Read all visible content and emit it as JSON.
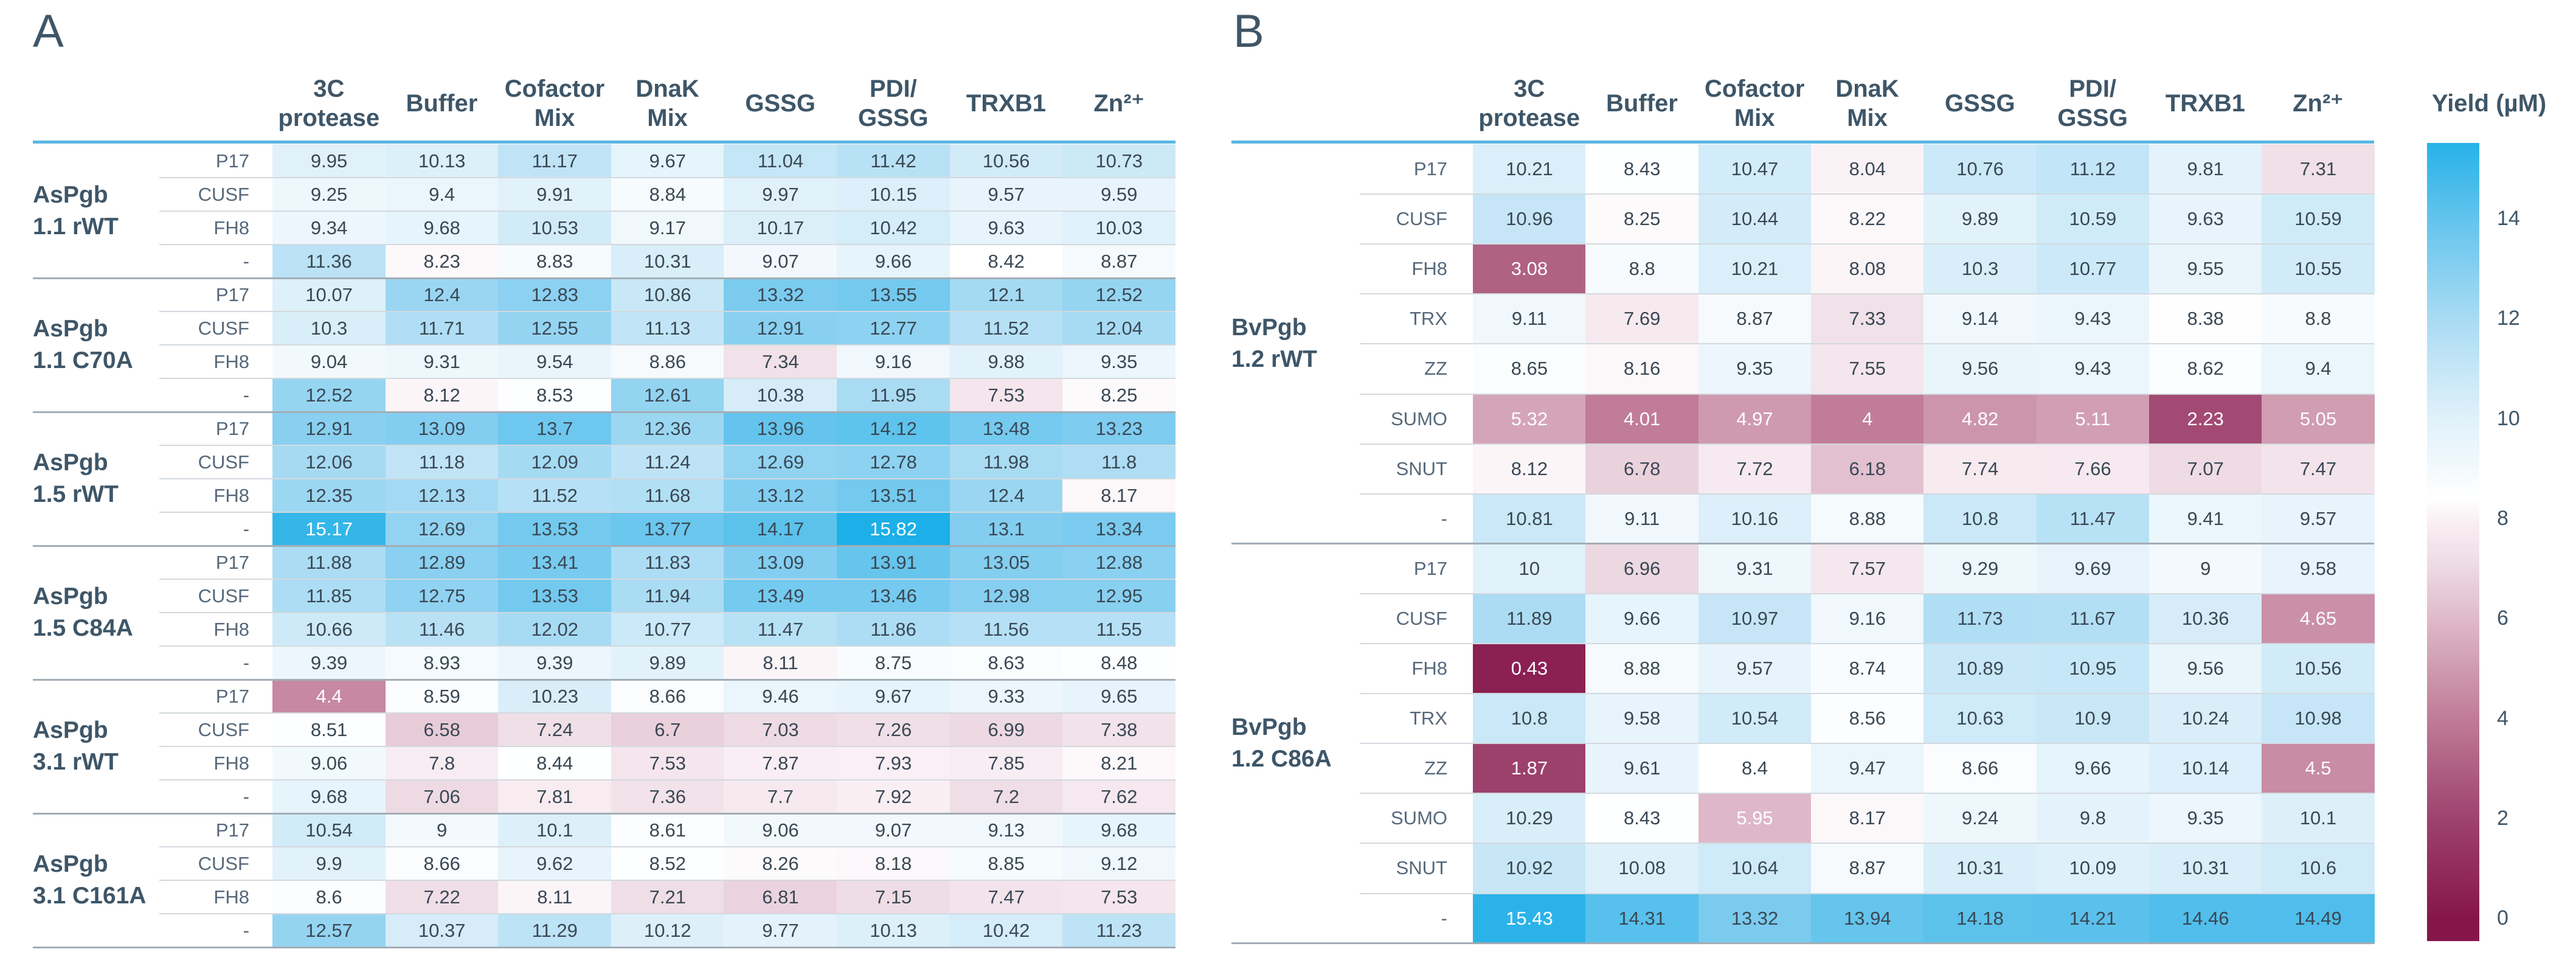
{
  "chart_data": [
    {
      "type": "heatmap",
      "panel": "A",
      "columns": [
        [
          "3C",
          "protease"
        ],
        [
          "Buffer"
        ],
        [
          "Cofactor",
          "Mix"
        ],
        [
          "DnaK",
          "Mix"
        ],
        [
          "GSSG"
        ],
        [
          "PDI/",
          "GSSG"
        ],
        [
          "TRXB1"
        ],
        [
          "Zn²⁺"
        ]
      ],
      "groups": [
        {
          "label": [
            "AsPgb",
            "1.1 rWT"
          ],
          "rows": [
            {
              "tag": "P17",
              "values": [
                9.95,
                10.13,
                11.17,
                9.67,
                11.04,
                11.42,
                10.56,
                10.73
              ]
            },
            {
              "tag": "CUSF",
              "values": [
                9.25,
                9.4,
                9.91,
                8.84,
                9.97,
                10.15,
                9.57,
                9.59
              ]
            },
            {
              "tag": "FH8",
              "values": [
                9.34,
                9.68,
                10.53,
                9.17,
                10.17,
                10.42,
                9.63,
                10.03
              ]
            },
            {
              "tag": "-",
              "values": [
                11.36,
                8.23,
                8.83,
                10.31,
                9.07,
                9.66,
                8.42,
                8.87
              ]
            }
          ]
        },
        {
          "label": [
            "AsPgb",
            "1.1 C70A"
          ],
          "rows": [
            {
              "tag": "P17",
              "values": [
                10.07,
                12.4,
                12.83,
                10.86,
                13.32,
                13.55,
                12.1,
                12.52
              ]
            },
            {
              "tag": "CUSF",
              "values": [
                10.3,
                11.71,
                12.55,
                11.13,
                12.91,
                12.77,
                11.52,
                12.04
              ]
            },
            {
              "tag": "FH8",
              "values": [
                9.04,
                9.31,
                9.54,
                8.86,
                7.34,
                9.16,
                9.88,
                9.35
              ]
            },
            {
              "tag": "-",
              "values": [
                12.52,
                8.12,
                8.53,
                12.61,
                10.38,
                11.95,
                7.53,
                8.25
              ]
            }
          ]
        },
        {
          "label": [
            "AsPgb",
            "1.5 rWT"
          ],
          "rows": [
            {
              "tag": "P17",
              "values": [
                12.91,
                13.09,
                13.7,
                12.36,
                13.96,
                14.12,
                13.48,
                13.23
              ]
            },
            {
              "tag": "CUSF",
              "values": [
                12.06,
                11.18,
                12.09,
                11.24,
                12.69,
                12.78,
                11.98,
                11.8
              ]
            },
            {
              "tag": "FH8",
              "values": [
                12.35,
                12.13,
                11.52,
                11.68,
                13.12,
                13.51,
                12.4,
                8.17
              ]
            },
            {
              "tag": "-",
              "values": [
                15.17,
                12.69,
                13.53,
                13.77,
                14.17,
                15.82,
                13.1,
                13.34
              ]
            }
          ]
        },
        {
          "label": [
            "AsPgb",
            "1.5 C84A"
          ],
          "rows": [
            {
              "tag": "P17",
              "values": [
                11.88,
                12.89,
                13.41,
                11.83,
                13.09,
                13.91,
                13.05,
                12.88
              ]
            },
            {
              "tag": "CUSF",
              "values": [
                11.85,
                12.75,
                13.53,
                11.94,
                13.49,
                13.46,
                12.98,
                12.95
              ]
            },
            {
              "tag": "FH8",
              "values": [
                10.66,
                11.46,
                12.02,
                10.77,
                11.47,
                11.86,
                11.56,
                11.55
              ]
            },
            {
              "tag": "-",
              "values": [
                9.39,
                8.93,
                9.39,
                9.89,
                8.11,
                8.75,
                8.63,
                8.48
              ]
            }
          ]
        },
        {
          "label": [
            "AsPgb",
            "3.1 rWT"
          ],
          "rows": [
            {
              "tag": "P17",
              "values": [
                4.4,
                8.59,
                10.23,
                8.66,
                9.46,
                9.67,
                9.33,
                9.65
              ]
            },
            {
              "tag": "CUSF",
              "values": [
                8.51,
                6.58,
                7.24,
                6.7,
                7.03,
                7.26,
                6.99,
                7.38
              ]
            },
            {
              "tag": "FH8",
              "values": [
                9.06,
                7.8,
                8.44,
                7.53,
                7.87,
                7.93,
                7.85,
                8.21
              ]
            },
            {
              "tag": "-",
              "values": [
                9.68,
                7.06,
                7.81,
                7.36,
                7.7,
                7.92,
                7.2,
                7.62
              ]
            }
          ]
        },
        {
          "label": [
            "AsPgb",
            "3.1 C161A"
          ],
          "rows": [
            {
              "tag": "P17",
              "values": [
                10.54,
                9,
                10.1,
                8.61,
                9.06,
                9.07,
                9.13,
                9.68
              ]
            },
            {
              "tag": "CUSF",
              "values": [
                9.9,
                8.66,
                9.62,
                8.52,
                8.26,
                8.18,
                8.85,
                9.12
              ]
            },
            {
              "tag": "FH8",
              "values": [
                8.6,
                7.22,
                8.11,
                7.21,
                6.81,
                7.15,
                7.47,
                7.53
              ]
            },
            {
              "tag": "-",
              "values": [
                12.57,
                10.37,
                11.29,
                10.12,
                9.77,
                10.13,
                10.42,
                11.23
              ]
            }
          ]
        }
      ]
    },
    {
      "type": "heatmap",
      "panel": "B",
      "columns": [
        [
          "3C",
          "protease"
        ],
        [
          "Buffer"
        ],
        [
          "Cofactor",
          "Mix"
        ],
        [
          "DnaK",
          "Mix"
        ],
        [
          "GSSG"
        ],
        [
          "PDI/",
          "GSSG"
        ],
        [
          "TRXB1"
        ],
        [
          "Zn²⁺"
        ]
      ],
      "groups": [
        {
          "label": [
            "BvPgb",
            "1.2 rWT"
          ],
          "rows": [
            {
              "tag": "P17",
              "values": [
                10.21,
                8.43,
                10.47,
                8.04,
                10.76,
                11.12,
                9.81,
                7.31
              ]
            },
            {
              "tag": "CUSF",
              "values": [
                10.96,
                8.25,
                10.44,
                8.22,
                9.89,
                10.59,
                9.63,
                10.59
              ]
            },
            {
              "tag": "FH8",
              "values": [
                3.08,
                8.8,
                10.21,
                8.08,
                10.3,
                10.77,
                9.55,
                10.55
              ]
            },
            {
              "tag": "TRX",
              "values": [
                9.11,
                7.69,
                8.87,
                7.33,
                9.14,
                9.43,
                8.38,
                8.8
              ]
            },
            {
              "tag": "ZZ",
              "values": [
                8.65,
                8.16,
                9.35,
                7.55,
                9.56,
                9.43,
                8.62,
                9.4
              ]
            },
            {
              "tag": "SUMO",
              "values": [
                5.32,
                4.01,
                4.97,
                4,
                4.82,
                5.11,
                2.23,
                5.05
              ]
            },
            {
              "tag": "SNUT",
              "values": [
                8.12,
                6.78,
                7.72,
                6.18,
                7.74,
                7.66,
                7.07,
                7.47
              ]
            },
            {
              "tag": "-",
              "values": [
                10.81,
                9.11,
                10.16,
                8.88,
                10.8,
                11.47,
                9.41,
                9.57
              ]
            }
          ]
        },
        {
          "label": [
            "BvPgb",
            "1.2 C86A"
          ],
          "rows": [
            {
              "tag": "P17",
              "values": [
                10,
                6.96,
                9.31,
                7.57,
                9.29,
                9.69,
                9,
                9.58
              ]
            },
            {
              "tag": "CUSF",
              "values": [
                11.89,
                9.66,
                10.97,
                9.16,
                11.73,
                11.67,
                10.36,
                4.65
              ]
            },
            {
              "tag": "FH8",
              "values": [
                0.43,
                8.88,
                9.57,
                8.74,
                10.89,
                10.95,
                9.56,
                10.56
              ]
            },
            {
              "tag": "TRX",
              "values": [
                10.8,
                9.58,
                10.54,
                8.56,
                10.63,
                10.9,
                10.24,
                10.98
              ]
            },
            {
              "tag": "ZZ",
              "values": [
                1.87,
                9.61,
                8.4,
                9.47,
                8.66,
                9.66,
                10.14,
                4.5
              ]
            },
            {
              "tag": "SUMO",
              "values": [
                10.29,
                8.43,
                5.95,
                8.17,
                9.24,
                9.8,
                9.35,
                10.1
              ]
            },
            {
              "tag": "SNUT",
              "values": [
                10.92,
                10.08,
                10.64,
                8.87,
                10.31,
                10.09,
                10.31,
                10.6
              ]
            },
            {
              "tag": "-",
              "values": [
                15.43,
                14.31,
                13.32,
                13.94,
                14.18,
                14.21,
                14.46,
                14.49
              ]
            }
          ]
        }
      ]
    }
  ],
  "colorbar": {
    "title": "Yield (µM)",
    "ticks": [
      0,
      2,
      4,
      6,
      8,
      10,
      12,
      14
    ],
    "range": [
      -0.46,
      15.51
    ],
    "colorscale": [
      [
        0,
        "#86164a"
      ],
      [
        2,
        "#9e436e"
      ],
      [
        4,
        "#c07c98"
      ],
      [
        5,
        "#cf9bb0"
      ],
      [
        6,
        "#dfbacb"
      ],
      [
        7,
        "#edd9e2"
      ],
      [
        8,
        "#faf1f5"
      ],
      [
        8.4,
        "#ffffff"
      ],
      [
        9,
        "#f3f9fd"
      ],
      [
        10,
        "#e0f1fa"
      ],
      [
        11,
        "#c5e6f7"
      ],
      [
        12,
        "#a8dbf3"
      ],
      [
        13,
        "#86cff0"
      ],
      [
        14,
        "#63c4ed"
      ],
      [
        15,
        "#3bb8ea"
      ],
      [
        16,
        "#15ade7"
      ]
    ]
  }
}
